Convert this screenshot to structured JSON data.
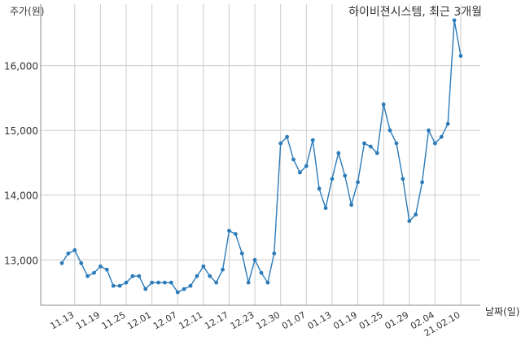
{
  "chart_data": {
    "type": "line",
    "title": "하이비젼시스템, 최근 3개월",
    "ylabel": "주가(원)",
    "xlabel": "날짜(일)",
    "ylim": [
      12300,
      16950
    ],
    "yticks": [
      13000,
      14000,
      15000,
      16000
    ],
    "ytick_labels": [
      "13,000",
      "14,000",
      "15,000",
      "16,000"
    ],
    "xtick_labels": [
      "11.13",
      "11.19",
      "11.25",
      "12.01",
      "12.07",
      "12.11",
      "12.17",
      "12.23",
      "12.30",
      "01.07",
      "01.13",
      "01.19",
      "01.25",
      "01.29",
      "02.04",
      "21.02.10"
    ],
    "xtick_index": [
      2,
      6,
      10,
      14,
      18,
      22,
      26,
      30,
      34,
      38,
      42,
      46,
      50,
      54,
      58,
      62
    ],
    "grid": true,
    "color": "#2b7bba",
    "series": [
      {
        "values": [
          12950,
          13100,
          13150,
          12950,
          12750,
          12800,
          12900,
          12850,
          12600,
          12600,
          12650,
          12750,
          12750,
          12550,
          12650,
          12650,
          12650,
          12650,
          12500,
          12550,
          12600,
          12750,
          12900,
          12750,
          12650,
          12850,
          13450,
          13400,
          13100,
          12650,
          13000,
          12800,
          12650,
          13100,
          14800,
          14900,
          14550,
          14350,
          14450,
          14850,
          14100,
          13800,
          14250,
          14650,
          14300,
          13850,
          14200,
          14800,
          14750,
          14650,
          15400,
          15000,
          14800,
          14250,
          13600,
          13700,
          14200,
          15000,
          14800,
          14900,
          15100,
          16700,
          16150
        ]
      }
    ]
  }
}
